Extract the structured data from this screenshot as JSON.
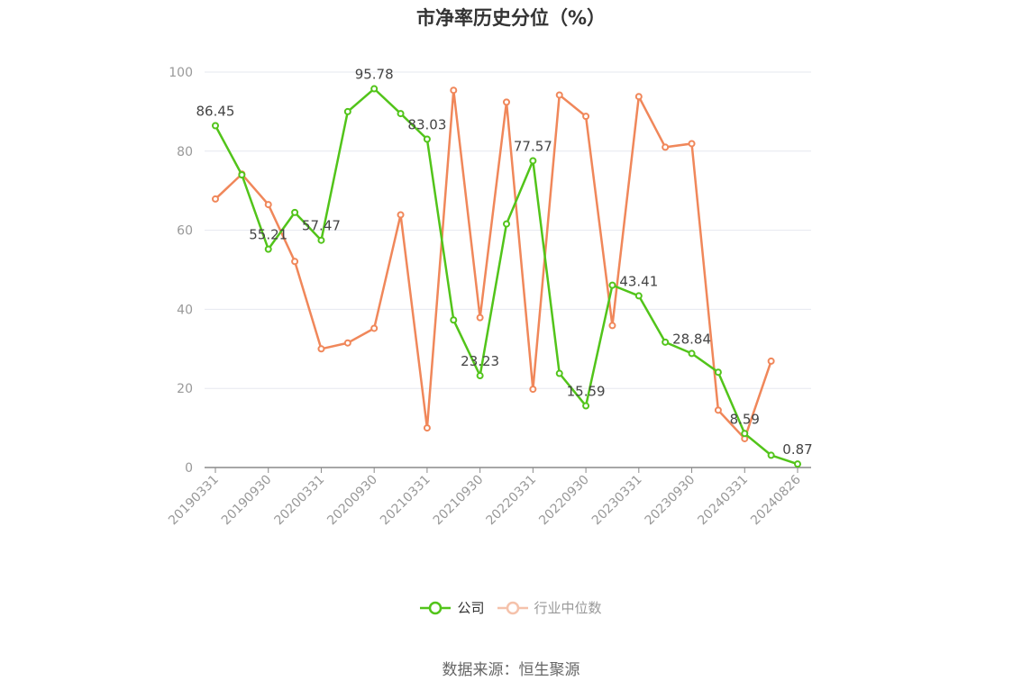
{
  "chart_data": {
    "type": "line",
    "title": "市净率历史分位（%）",
    "ylim": [
      0,
      100
    ],
    "yticks": [
      0,
      20,
      40,
      60,
      80,
      100
    ],
    "x": [
      "20190331",
      "20190630",
      "20190930",
      "20191231",
      "20200331",
      "20200630",
      "20200930",
      "20201231",
      "20210331",
      "20210630",
      "20210930",
      "20211231",
      "20220331",
      "20220630",
      "20220930",
      "20221231",
      "20230331",
      "20230630",
      "20230930",
      "20231231",
      "20240331",
      "20240630",
      "20240826"
    ],
    "xtick_labels": [
      "20190331",
      "20190930",
      "20200331",
      "20200930",
      "20210331",
      "20210930",
      "20220331",
      "20220930",
      "20230331",
      "20230930",
      "20240331",
      "20240826"
    ],
    "grid": true,
    "series": [
      {
        "name": "公司",
        "color": "#52c41a",
        "values": [
          86.45,
          74,
          55.21,
          64.5,
          57.47,
          90,
          95.78,
          89.5,
          83.03,
          37.3,
          23.23,
          61.6,
          77.57,
          23.8,
          15.59,
          46.1,
          43.41,
          31.7,
          28.84,
          24.1,
          8.59,
          3.1,
          0.87
        ],
        "labels": {
          "0": "86.45",
          "2": "55.21",
          "4": "57.47",
          "6": "95.78",
          "8": "83.03",
          "10": "23.23",
          "12": "77.57",
          "14": "15.59",
          "16": "43.41",
          "18": "28.84",
          "20": "8.59",
          "22": "0.87"
        }
      },
      {
        "name": "行业中位数",
        "color": "#f0875a",
        "values": [
          67.9,
          74.2,
          66.5,
          52.1,
          30.0,
          31.5,
          35.2,
          63.9,
          10.0,
          95.4,
          37.9,
          92.4,
          19.8,
          94.2,
          88.8,
          35.9,
          93.8,
          81.0,
          81.9,
          14.5,
          7.3,
          26.9,
          null
        ]
      }
    ]
  },
  "legend": {
    "company": "公司",
    "industry": "行业中位数"
  },
  "source": "数据来源：恒生聚源"
}
